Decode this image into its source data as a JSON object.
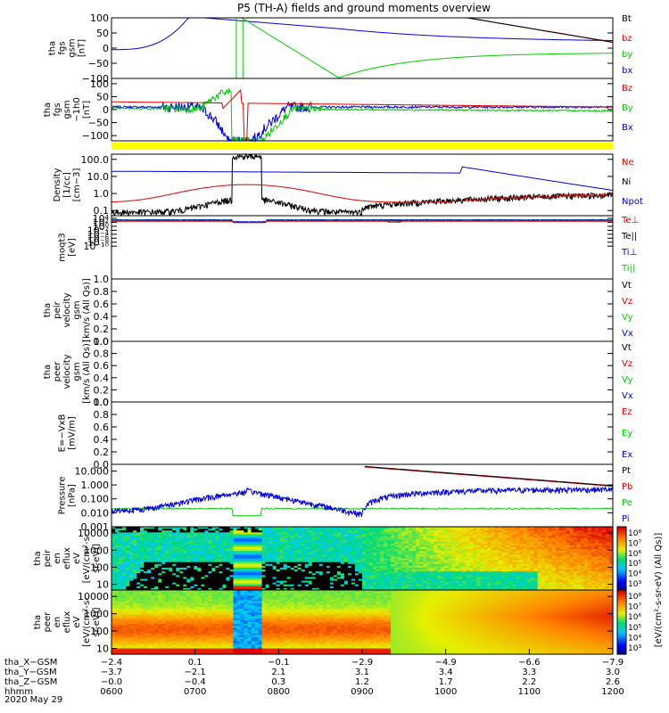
{
  "title": "P5 (TH-A) fields and ground moments overview",
  "date_label": "2020 May 29",
  "colors": {
    "black": "#000000",
    "red": "#e00000",
    "green": "#00cc00",
    "blue": "#0000e0",
    "yellow": "#ffff00"
  },
  "chart_data": [
    {
      "type": "line",
      "ylabel": [
        "tha",
        "fgs",
        "gsm",
        "[nT]"
      ],
      "ylim": [
        -100,
        100
      ],
      "yticks": [
        "100",
        "50",
        "0",
        "−50",
        "−100"
      ],
      "series": [
        {
          "name": "Bt",
          "color": "black"
        },
        {
          "name": "bz",
          "color": "red"
        },
        {
          "name": "by",
          "color": "green"
        },
        {
          "name": "bx",
          "color": "blue"
        }
      ]
    },
    {
      "type": "line",
      "ylabel": [
        "tha",
        "fgs",
        "gsm",
        "−1h0",
        "[nT]"
      ],
      "ylim": [
        -120,
        120
      ],
      "yticks": [
        "100",
        "50",
        "0",
        "−50",
        "−100"
      ],
      "series": [
        {
          "name": "Bz",
          "color": "red"
        },
        {
          "name": "By",
          "color": "green"
        },
        {
          "name": "Bx",
          "color": "blue"
        }
      ]
    },
    {
      "type": "line",
      "ylabel": [
        "Density",
        "[1/cc]",
        "[cm−3]"
      ],
      "scale": "log",
      "ylim": [
        0.05,
        200
      ],
      "yticks": [
        "100.0",
        "10.0",
        "1.0",
        "0.1"
      ],
      "series": [
        {
          "name": "Ne",
          "color": "red"
        },
        {
          "name": "Ni",
          "color": "black"
        },
        {
          "name": "Npot",
          "color": "blue"
        }
      ]
    },
    {
      "type": "line",
      "ylabel": [
        "moqt3",
        "[eV]"
      ],
      "scale": "log",
      "yticks": [
        "10⁴",
        "10²",
        "10⁰",
        "10⁻²",
        "10⁻⁴",
        "10⁻⁶",
        "10⁻⁸",
        "10⁻¹⁰"
      ],
      "series": [
        {
          "name": "Te⊥",
          "color": "red"
        },
        {
          "name": "Te||",
          "color": "black"
        },
        {
          "name": "Ti⊥",
          "color": "blue"
        },
        {
          "name": "Ti||",
          "color": "green"
        }
      ]
    },
    {
      "type": "line",
      "ylabel": [
        "tha",
        "peir",
        "velocity",
        "gsm",
        "[km/s (All Qs)]"
      ],
      "ylim": [
        0,
        1
      ],
      "yticks": [
        "1.0",
        "0.8",
        "0.6",
        "0.4",
        "0.2",
        "0.0"
      ],
      "series": [
        {
          "name": "Vt",
          "color": "black"
        },
        {
          "name": "Vz",
          "color": "red"
        },
        {
          "name": "Vy",
          "color": "green"
        },
        {
          "name": "Vx",
          "color": "blue"
        }
      ]
    },
    {
      "type": "line",
      "ylabel": [
        "tha",
        "peer",
        "velocity",
        "gsm",
        "[km/s (All Qs)]"
      ],
      "ylim": [
        0,
        1
      ],
      "yticks": [
        "1.0",
        "0.8",
        "0.6",
        "0.4",
        "0.2",
        "0.0"
      ],
      "series": [
        {
          "name": "Vt",
          "color": "black"
        },
        {
          "name": "Vz",
          "color": "red"
        },
        {
          "name": "Vy",
          "color": "green"
        },
        {
          "name": "Vx",
          "color": "blue"
        }
      ]
    },
    {
      "type": "line",
      "ylabel": [
        "E=−VxB",
        "[mV/m]"
      ],
      "ylim": [
        0,
        1
      ],
      "yticks": [
        "1.0",
        "0.8",
        "0.6",
        "0.4",
        "0.2",
        "0.0"
      ],
      "series": [
        {
          "name": "Ez",
          "color": "red"
        },
        {
          "name": "Ey",
          "color": "green"
        },
        {
          "name": "Ex",
          "color": "blue"
        }
      ]
    },
    {
      "type": "line",
      "ylabel": [
        "Pressure",
        "[nPa]"
      ],
      "scale": "log",
      "ylim": [
        0.001,
        30
      ],
      "yticks": [
        "10.000",
        "1.000",
        "0.100",
        "0.010",
        "0.001"
      ],
      "series": [
        {
          "name": "Pt",
          "color": "black"
        },
        {
          "name": "Pb",
          "color": "red"
        },
        {
          "name": "Pe",
          "color": "green"
        },
        {
          "name": "Pi",
          "color": "blue"
        }
      ]
    },
    {
      "type": "heatmap",
      "ylabel": [
        "tha",
        "peir",
        "en",
        "eflux",
        "eV",
        "[eV/(cm²-s-",
        "sr-eV)]"
      ],
      "yticks": [
        "10000",
        "1000",
        "100",
        "10"
      ],
      "colorbar_ticks": [
        "10⁸",
        "10⁷",
        "10⁶",
        "10⁵",
        "10⁴",
        "10³"
      ],
      "colorbar_label": "[eV/(cm²-s-sr-eV) (All Qs)]"
    },
    {
      "type": "heatmap",
      "ylabel": [
        "tha",
        "peer",
        "en",
        "eflux",
        "eV",
        "[eV/(cm²-s-",
        "sr-eV)]"
      ],
      "yticks": [
        "10000",
        "1000",
        "100",
        "10"
      ],
      "colorbar_ticks": [
        "10⁸",
        "10⁷",
        "10⁶",
        "10⁵",
        "10⁴",
        "10³"
      ],
      "colorbar_label": "[eV/(cm²-s-sr-eV)]"
    }
  ],
  "time_axis": {
    "row_labels": [
      "tha_X−GSM",
      "tha_Y−GSM",
      "tha_Z−GSM",
      "hhmm"
    ],
    "columns": [
      {
        "x": "−2.4",
        "y": "−3.7",
        "z": "−0.0",
        "hhmm": "0600"
      },
      {
        "x": "0.1",
        "y": "−2.1",
        "z": "−0.4",
        "hhmm": "0700"
      },
      {
        "x": "−0.1",
        "y": "2.1",
        "z": "0.3",
        "hhmm": "0800"
      },
      {
        "x": "−2.9",
        "y": "3.1",
        "z": "1.2",
        "hhmm": "0900"
      },
      {
        "x": "−4.9",
        "y": "3.4",
        "z": "1.7",
        "hhmm": "1000"
      },
      {
        "x": "−6.6",
        "y": "3.3",
        "z": "2.2",
        "hhmm": "1100"
      },
      {
        "x": "−7.9",
        "y": "3.0",
        "z": "2.6",
        "hhmm": "1200"
      }
    ]
  }
}
